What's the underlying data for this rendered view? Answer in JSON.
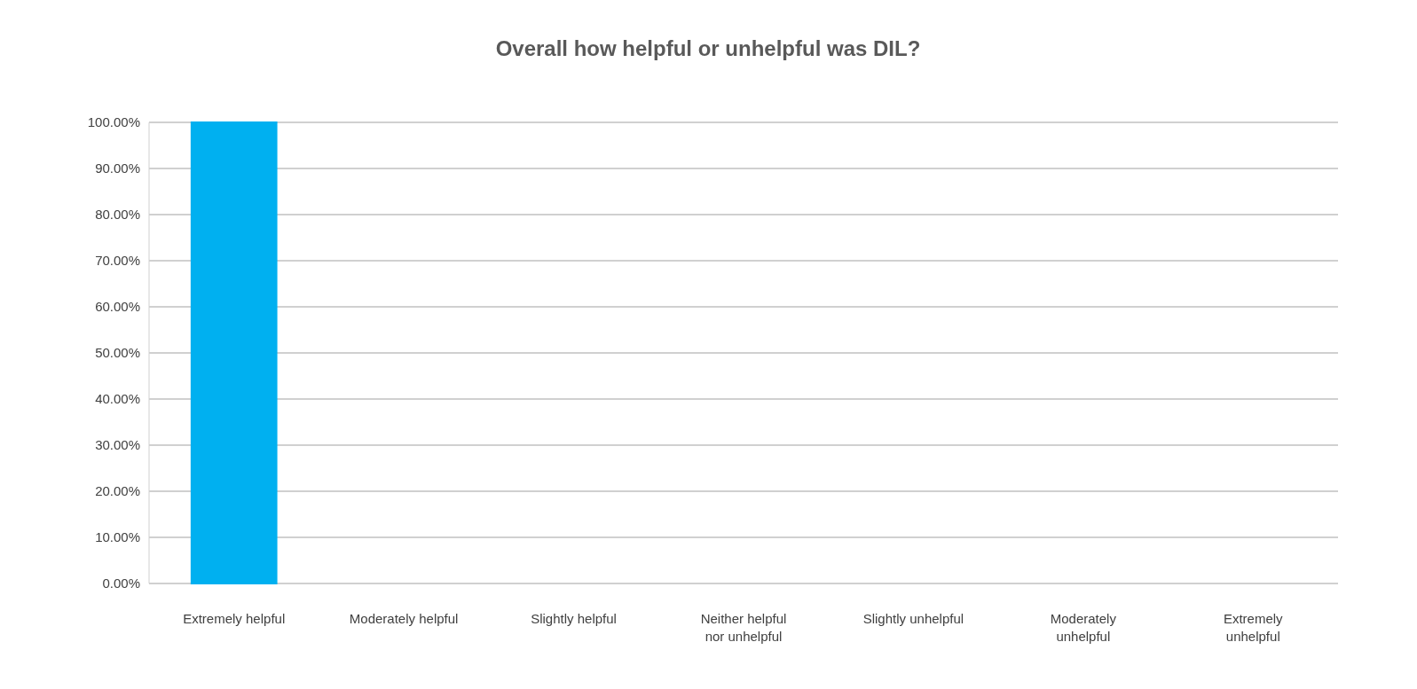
{
  "chart_data": {
    "type": "bar",
    "title": "Overall how helpful or unhelpful was DIL?",
    "categories": [
      "Extremely helpful",
      "Moderately helpful",
      "Slightly helpful",
      "Neither helpful nor unhelpful",
      "Slightly unhelpful",
      "Moderately unhelpful",
      "Extremely unhelpful"
    ],
    "values": [
      100,
      0,
      0,
      0,
      0,
      0,
      0
    ],
    "colors": [
      "#00b0f0",
      "#2f5597",
      "#2f5597",
      "#2f5597",
      "#2f5597",
      "#2f5597",
      "#2f5597"
    ],
    "ylim": [
      0,
      100
    ],
    "yticks": [
      {
        "value": 0,
        "label": "0.00%"
      },
      {
        "value": 10,
        "label": "10.00%"
      },
      {
        "value": 20,
        "label": "20.00%"
      },
      {
        "value": 30,
        "label": "30.00%"
      },
      {
        "value": 40,
        "label": "40.00%"
      },
      {
        "value": 50,
        "label": "50.00%"
      },
      {
        "value": 60,
        "label": "60.00%"
      },
      {
        "value": 70,
        "label": "70.00%"
      },
      {
        "value": 80,
        "label": "80.00%"
      },
      {
        "value": 90,
        "label": "90.00%"
      },
      {
        "value": 100,
        "label": "100.00%"
      }
    ],
    "grid": "y"
  }
}
